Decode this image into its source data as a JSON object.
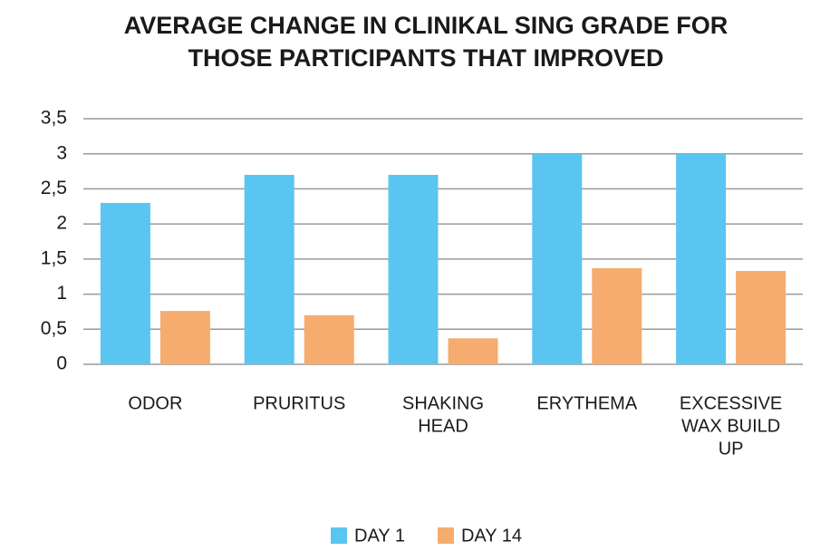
{
  "chart_data": {
    "type": "bar",
    "title": [
      "AVERAGE CHANGE IN CLINIKAL SING GRADE FOR",
      "THOSE PARTICIPANTS THAT IMPROVED"
    ],
    "categories": [
      [
        "ODOR"
      ],
      [
        "PRURITUS"
      ],
      [
        "SHAKING",
        "HEAD"
      ],
      [
        "ERYTHEMA"
      ],
      [
        "EXCESSIVE",
        "WAX BUILD",
        "UP"
      ]
    ],
    "series": [
      {
        "name": "DAY 1",
        "color": "#5bc5f2",
        "values": [
          2.3,
          2.7,
          2.7,
          3,
          3
        ]
      },
      {
        "name": "DAY 14",
        "color": "#f5ac6e",
        "values": [
          0.76,
          0.7,
          0.37,
          1.37,
          1.33
        ]
      }
    ],
    "ylim": [
      0,
      3.5
    ],
    "yticks": [
      0,
      {
        "value": 0.5,
        "label": "0,5"
      },
      1,
      {
        "value": 1.5,
        "label": "1,5"
      },
      2,
      {
        "value": 2.5,
        "label": "2,5"
      },
      3,
      {
        "value": 3.5,
        "label": "3,5"
      }
    ],
    "grid": true
  }
}
